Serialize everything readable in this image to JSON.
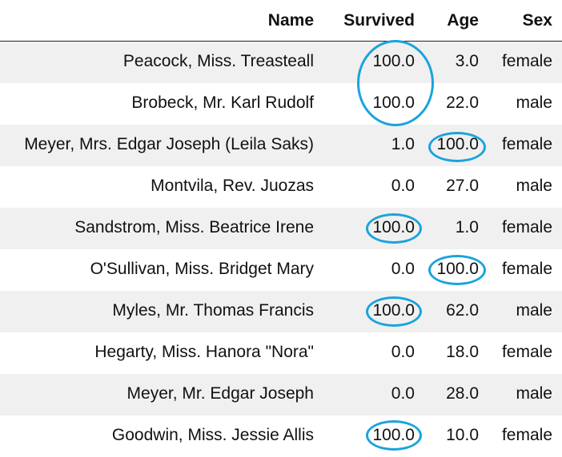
{
  "table": {
    "headers": {
      "name": "Name",
      "survived": "Survived",
      "age": "Age",
      "sex": "Sex"
    },
    "rows": [
      {
        "name": "Peacock, Miss. Treasteall",
        "survived": "100.0",
        "age": "3.0",
        "sex": "female"
      },
      {
        "name": "Brobeck, Mr. Karl Rudolf",
        "survived": "100.0",
        "age": "22.0",
        "sex": "male"
      },
      {
        "name": "Meyer, Mrs. Edgar Joseph (Leila Saks)",
        "survived": "1.0",
        "age": "100.0",
        "sex": "female"
      },
      {
        "name": "Montvila, Rev. Juozas",
        "survived": "0.0",
        "age": "27.0",
        "sex": "male"
      },
      {
        "name": "Sandstrom, Miss. Beatrice Irene",
        "survived": "100.0",
        "age": "1.0",
        "sex": "female"
      },
      {
        "name": "O'Sullivan, Miss. Bridget Mary",
        "survived": "0.0",
        "age": "100.0",
        "sex": "female"
      },
      {
        "name": "Myles, Mr. Thomas Francis",
        "survived": "100.0",
        "age": "62.0",
        "sex": "male"
      },
      {
        "name": "Hegarty, Miss. Hanora \"Nora\"",
        "survived": "0.0",
        "age": "18.0",
        "sex": "female"
      },
      {
        "name": "Meyer, Mr. Edgar Joseph",
        "survived": "0.0",
        "age": "28.0",
        "sex": "male"
      },
      {
        "name": "Goodwin, Miss. Jessie Allis",
        "survived": "100.0",
        "age": "10.0",
        "sex": "female"
      }
    ]
  },
  "highlight_color": "#1aa3dc"
}
